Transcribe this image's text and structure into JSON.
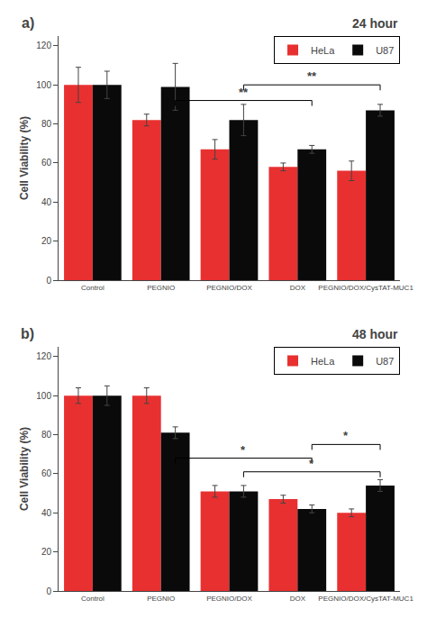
{
  "chart_data": [
    {
      "type": "bar",
      "title": "24 hour",
      "categories": [
        "Control",
        "PEGNIO",
        "PEGNIO/DOX",
        "DOX",
        "PEGNIO/DOX/CysTAT-MUC1"
      ],
      "series": [
        {
          "name": "HeLa",
          "color": "#E83030",
          "values": [
            100,
            82,
            67,
            58,
            56
          ],
          "errors": [
            9,
            3,
            5,
            2,
            5
          ]
        },
        {
          "name": "U87",
          "color": "#0a0a0a",
          "values": [
            100,
            99,
            82,
            67,
            87
          ],
          "errors": [
            7,
            12,
            8,
            2,
            3
          ]
        }
      ],
      "ylabel": "Cell Viability (%)",
      "ylim": [
        0,
        125
      ],
      "yticks": [
        0,
        20,
        40,
        60,
        80,
        100,
        120
      ],
      "grid": false,
      "legend": "upper right",
      "annotations": [
        {
          "text": "a)"
        },
        {
          "text": "**",
          "from": "PEGNIO",
          "to": "DOX",
          "y": 92
        },
        {
          "text": "**",
          "from": "PEGNIO/DOX",
          "to": "PEGNIO/DOX/CysTAT-MUC1",
          "y": 100
        }
      ]
    },
    {
      "type": "bar",
      "title": "48 hour",
      "categories": [
        "Control",
        "PEGNIO",
        "PEGNIO/DOX",
        "DOX",
        "PEGNIO/DOX/CysTAT-MUC1"
      ],
      "series": [
        {
          "name": "HeLa",
          "color": "#E83030",
          "values": [
            100,
            100,
            51,
            47,
            40
          ],
          "errors": [
            4,
            4,
            3,
            2,
            2
          ]
        },
        {
          "name": "U87",
          "color": "#0a0a0a",
          "values": [
            100,
            81,
            51,
            42,
            54
          ],
          "errors": [
            5,
            3,
            3,
            2,
            3
          ]
        }
      ],
      "ylabel": "Cell Viability (%)",
      "ylim": [
        0,
        125
      ],
      "yticks": [
        0,
        20,
        40,
        60,
        80,
        100,
        120
      ],
      "grid": false,
      "legend": "upper right",
      "annotations": [
        {
          "text": "b)"
        },
        {
          "text": "*",
          "from": "PEGNIO",
          "to": "DOX",
          "y": 68
        },
        {
          "text": "*",
          "from": "PEGNIO/DOX",
          "to": "PEGNIO/DOX/CysTAT-MUC1",
          "y": 61
        },
        {
          "text": "*",
          "from": "DOX",
          "to": "PEGNIO/DOX/CysTAT-MUC1",
          "y": 75
        }
      ]
    }
  ]
}
